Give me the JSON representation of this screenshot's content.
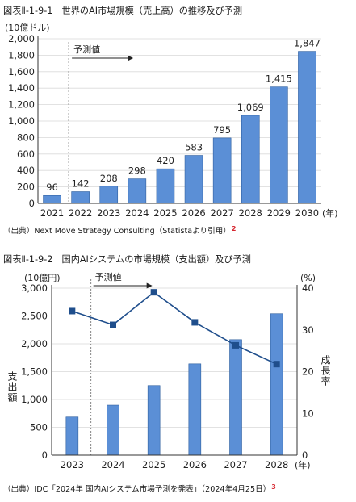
{
  "figure1": {
    "title": "図表Ⅱ-1-9-1　世界のAI市場規模（売上高）の推移及び予測",
    "source": "（出典）Next Move Strategy Consulting（Statistaより引用）",
    "source_note": "2"
  },
  "figure2": {
    "title": "図表Ⅱ-1-9-2　国内AIシステムの市場規模（支出額）及び予測",
    "source": "（出典）IDC「2024年 国内AIシステム市場予測を発表」（2024年4月25日）",
    "source_note": "3"
  },
  "colors": {
    "bar": "#5b8fd6",
    "bar_edge": "#2f5f9e",
    "line": "#1f4e8c",
    "axis": "#333333",
    "grid": "#d9d9d9",
    "note": "#d6262f"
  },
  "chart_data": [
    {
      "type": "bar",
      "unit_label": "(10億ドル)",
      "x_unit": "(年)",
      "forecast_label": "予測値",
      "forecast_from": "2022",
      "categories": [
        "2021",
        "2022",
        "2023",
        "2024",
        "2025",
        "2026",
        "2027",
        "2028",
        "2029",
        "2030"
      ],
      "values": [
        96,
        142,
        208,
        298,
        420,
        583,
        795,
        1069,
        1415,
        1847
      ],
      "data_labels": [
        "96",
        "142",
        "208",
        "298",
        "420",
        "583",
        "795",
        "1,069",
        "1,415",
        "1,847"
      ],
      "ylim": [
        0,
        2000
      ],
      "yticks": [
        "0",
        "200",
        "400",
        "600",
        "800",
        "1,000",
        "1,200",
        "1,400",
        "1,600",
        "1,800",
        "2,000"
      ],
      "grid": true
    },
    {
      "type": "bar+line",
      "unit_label_left": "(10億円)",
      "unit_label_right": "(%)",
      "ylabel_left": "支出額",
      "ylabel_right": "成長率",
      "x_unit": "(年)",
      "forecast_label": "予測値",
      "forecast_from": "2024",
      "categories": [
        "2023",
        "2024",
        "2025",
        "2026",
        "2027",
        "2028"
      ],
      "bar_values": [
        685,
        898,
        1250,
        1640,
        2075,
        2540
      ],
      "line_values": [
        34.5,
        31.2,
        39.0,
        31.8,
        26.3,
        21.8
      ],
      "ylim_left": [
        0,
        3000
      ],
      "ylim_right": [
        0,
        40
      ],
      "yticks_left": [
        "0",
        "500",
        "1,000",
        "1,500",
        "2,000",
        "2,500",
        "3,000"
      ],
      "yticks_right": [
        "0",
        "10",
        "20",
        "30",
        "40"
      ],
      "grid": true
    }
  ]
}
